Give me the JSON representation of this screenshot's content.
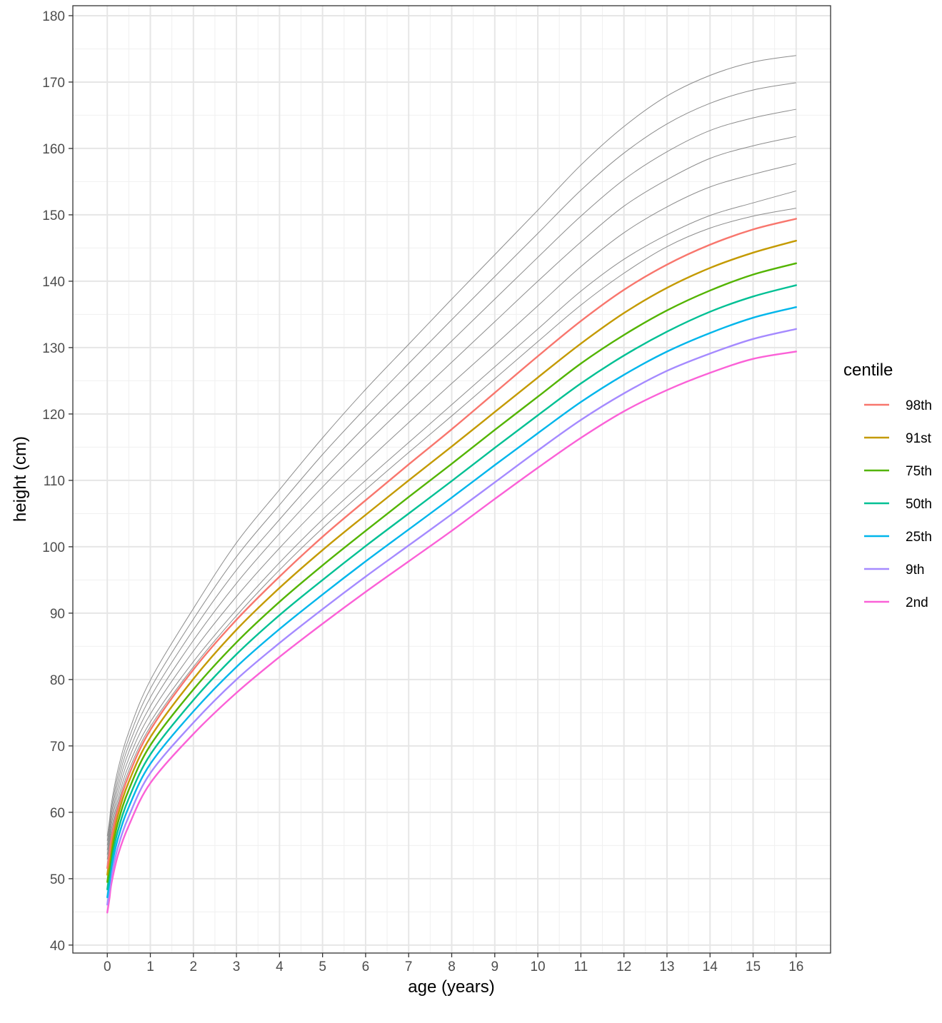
{
  "chart_data": {
    "type": "line",
    "title": "",
    "xlabel": "age (years)",
    "ylabel": "height (cm)",
    "xlim": [
      -0.8,
      16.8
    ],
    "ylim": [
      38.8,
      181.5
    ],
    "x_ticks": [
      0,
      1,
      2,
      3,
      4,
      5,
      6,
      7,
      8,
      9,
      10,
      11,
      12,
      13,
      14,
      15,
      16
    ],
    "y_ticks": [
      40,
      50,
      60,
      70,
      80,
      90,
      100,
      110,
      120,
      130,
      140,
      150,
      160,
      170,
      180
    ],
    "grid": true,
    "legend": {
      "title": "centile",
      "placement": "right"
    },
    "x": [
      0,
      0.05,
      0.1,
      0.25,
      0.5,
      1,
      2,
      3,
      4,
      5,
      6,
      7,
      8,
      9,
      10,
      11,
      12,
      13,
      14,
      15,
      16
    ],
    "series": [
      {
        "name": "98th",
        "color": "#F8766D",
        "values": [
          51.6,
          53.8,
          56.2,
          60.6,
          65.6,
          72.4,
          81.5,
          89.0,
          95.5,
          101.5,
          107.0,
          112.4,
          117.7,
          123.2,
          128.7,
          134.0,
          138.7,
          142.5,
          145.5,
          147.8,
          149.4
        ]
      },
      {
        "name": "91st",
        "color": "#C49A00",
        "values": [
          50.6,
          52.8,
          55.2,
          59.6,
          64.6,
          71.3,
          80.1,
          87.5,
          93.8,
          99.5,
          104.8,
          110.0,
          115.1,
          120.3,
          125.5,
          130.6,
          135.2,
          139.0,
          142.0,
          144.3,
          146.1
        ]
      },
      {
        "name": "75th",
        "color": "#53B400",
        "values": [
          49.5,
          51.7,
          54.1,
          58.5,
          63.4,
          70.1,
          78.5,
          85.6,
          91.7,
          97.2,
          102.4,
          107.5,
          112.5,
          117.6,
          122.6,
          127.6,
          131.9,
          135.6,
          138.6,
          141.0,
          142.7
        ]
      },
      {
        "name": "50th",
        "color": "#00C094",
        "values": [
          48.4,
          50.6,
          53.0,
          57.3,
          62.1,
          68.7,
          76.9,
          83.8,
          89.7,
          95.0,
          100.1,
          105.0,
          109.9,
          114.9,
          119.8,
          124.6,
          128.8,
          132.4,
          135.4,
          137.7,
          139.4
        ]
      },
      {
        "name": "25th",
        "color": "#00B6EB",
        "values": [
          47.2,
          49.4,
          51.8,
          56.1,
          60.8,
          67.3,
          75.2,
          81.9,
          87.6,
          92.8,
          97.8,
          102.6,
          107.4,
          112.3,
          117.1,
          121.8,
          125.9,
          129.4,
          132.2,
          134.5,
          136.1
        ]
      },
      {
        "name": "9th",
        "color": "#A58AFF",
        "values": [
          46.1,
          48.2,
          50.6,
          54.8,
          59.4,
          65.9,
          73.5,
          80.0,
          85.5,
          90.6,
          95.5,
          100.2,
          104.9,
          109.7,
          114.5,
          119.1,
          123.1,
          126.5,
          129.1,
          131.3,
          132.8
        ]
      },
      {
        "name": "2nd",
        "color": "#FB61D7",
        "values": [
          44.9,
          47.0,
          49.4,
          53.6,
          58.0,
          64.4,
          71.8,
          78.0,
          83.4,
          88.4,
          93.2,
          97.8,
          102.4,
          107.2,
          111.9,
          116.4,
          120.4,
          123.6,
          126.2,
          128.3,
          129.4
        ]
      }
    ],
    "reference_series": [
      {
        "values": [
          54.3,
          56.6,
          59.1,
          63.8,
          69.1,
          76.0,
          85.9,
          94.5,
          102.0,
          109.0,
          115.5,
          121.7,
          127.8,
          133.9,
          140.0,
          145.9,
          151.3,
          155.3,
          158.5,
          160.4,
          161.8
        ]
      },
      {
        "values": [
          55.0,
          57.3,
          59.9,
          64.7,
          70.1,
          77.3,
          87.5,
          96.5,
          104.1,
          111.4,
          118.2,
          124.6,
          131.0,
          137.3,
          143.6,
          149.8,
          155.3,
          159.5,
          162.7,
          164.6,
          165.9
        ]
      },
      {
        "values": [
          55.7,
          58.0,
          60.7,
          65.6,
          71.1,
          78.6,
          89.1,
          98.5,
          106.3,
          113.9,
          120.9,
          127.6,
          134.2,
          140.7,
          147.2,
          153.7,
          159.3,
          163.7,
          166.8,
          168.8,
          169.9
        ]
      },
      {
        "values": [
          56.4,
          58.7,
          61.5,
          66.5,
          72.1,
          79.9,
          90.7,
          100.6,
          108.6,
          116.4,
          123.7,
          130.5,
          137.3,
          144.0,
          150.7,
          157.5,
          163.3,
          167.9,
          171.0,
          173.0,
          174.0
        ]
      },
      {
        "values": [
          53.6,
          55.9,
          58.3,
          62.9,
          68.1,
          74.8,
          84.3,
          92.5,
          99.8,
          106.5,
          112.7,
          118.7,
          124.6,
          130.4,
          136.3,
          142.2,
          147.3,
          151.2,
          154.2,
          156.1,
          157.7
        ]
      },
      {
        "values": [
          52.9,
          55.2,
          57.5,
          62.0,
          67.1,
          73.6,
          82.7,
          90.5,
          97.6,
          104.1,
          110.0,
          115.7,
          121.4,
          127.1,
          132.8,
          138.5,
          143.3,
          147.0,
          149.9,
          151.8,
          153.6
        ]
      },
      {
        "values": [
          52.2,
          54.5,
          56.8,
          61.3,
          66.3,
          72.9,
          81.9,
          89.6,
          96.5,
          102.8,
          108.6,
          114.2,
          119.7,
          125.3,
          130.9,
          136.4,
          141.2,
          145.2,
          148.0,
          149.8,
          151.0
        ]
      }
    ]
  }
}
